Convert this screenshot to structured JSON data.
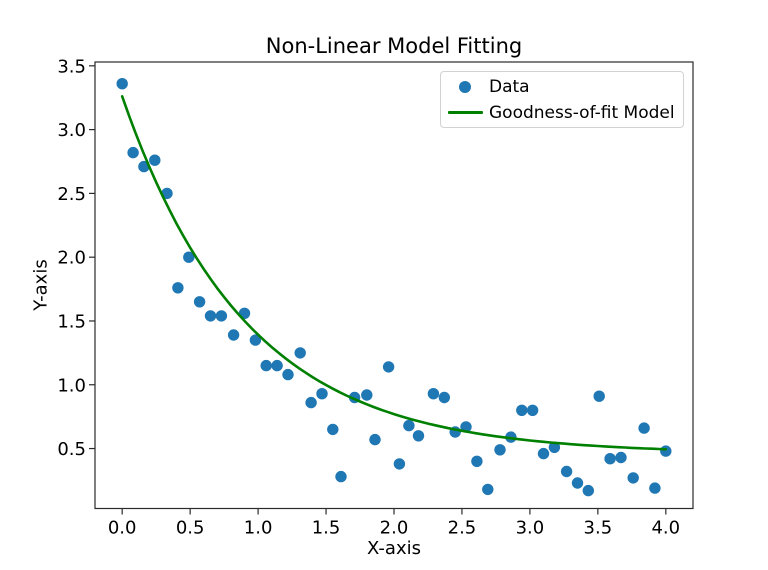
{
  "chart_data": {
    "type": "scatter",
    "title": "Non-Linear Model Fitting",
    "xlabel": "X-axis",
    "ylabel": "Y-axis",
    "grid": false,
    "legend_position": "upper right",
    "xlim": [
      -0.2,
      4.2
    ],
    "ylim": [
      0.03,
      3.53
    ],
    "x_ticks": {
      "values": [
        0.0,
        0.5,
        1.0,
        1.5,
        2.0,
        2.5,
        3.0,
        3.5,
        4.0
      ],
      "labels": [
        "0.0",
        "0.5",
        "1.0",
        "1.5",
        "2.0",
        "2.5",
        "3.0",
        "3.5",
        "4.0"
      ]
    },
    "y_ticks": {
      "values": [
        0.5,
        1.0,
        1.5,
        2.0,
        2.5,
        3.0,
        3.5
      ],
      "labels": [
        "0.5",
        "1.0",
        "1.5",
        "2.0",
        "2.5",
        "3.0",
        "3.5"
      ]
    },
    "series": [
      {
        "name": "Data",
        "type": "scatter",
        "color": "#1f77b4",
        "marker": "circle",
        "points": [
          [
            0.0,
            3.36
          ],
          [
            0.08,
            2.82
          ],
          [
            0.16,
            2.71
          ],
          [
            0.24,
            2.76
          ],
          [
            0.33,
            2.5
          ],
          [
            0.41,
            1.76
          ],
          [
            0.49,
            2.0
          ],
          [
            0.57,
            1.65
          ],
          [
            0.65,
            1.54
          ],
          [
            0.73,
            1.54
          ],
          [
            0.82,
            1.39
          ],
          [
            0.9,
            1.56
          ],
          [
            0.98,
            1.35
          ],
          [
            1.06,
            1.15
          ],
          [
            1.14,
            1.15
          ],
          [
            1.22,
            1.08
          ],
          [
            1.31,
            1.25
          ],
          [
            1.39,
            0.86
          ],
          [
            1.47,
            0.93
          ],
          [
            1.55,
            0.65
          ],
          [
            1.61,
            0.28
          ],
          [
            1.71,
            0.9
          ],
          [
            1.8,
            0.92
          ],
          [
            1.86,
            0.57
          ],
          [
            1.96,
            1.14
          ],
          [
            2.04,
            0.38
          ],
          [
            2.11,
            0.68
          ],
          [
            2.18,
            0.6
          ],
          [
            2.29,
            0.93
          ],
          [
            2.37,
            0.9
          ],
          [
            2.45,
            0.63
          ],
          [
            2.53,
            0.67
          ],
          [
            2.61,
            0.4
          ],
          [
            2.69,
            0.18
          ],
          [
            2.78,
            0.49
          ],
          [
            2.86,
            0.59
          ],
          [
            2.94,
            0.8
          ],
          [
            3.02,
            0.8
          ],
          [
            3.1,
            0.46
          ],
          [
            3.18,
            0.51
          ],
          [
            3.27,
            0.32
          ],
          [
            3.35,
            0.23
          ],
          [
            3.43,
            0.17
          ],
          [
            3.51,
            0.91
          ],
          [
            3.59,
            0.42
          ],
          [
            3.67,
            0.43
          ],
          [
            3.76,
            0.27
          ],
          [
            3.84,
            0.66
          ],
          [
            3.92,
            0.19
          ],
          [
            4.0,
            0.48
          ]
        ]
      },
      {
        "name": "Goodness-of-fit Model",
        "type": "line",
        "color": "#008000",
        "model": "a*exp(-b*x)+c",
        "params": {
          "a": 2.8,
          "b": 1.1,
          "c": 0.46
        },
        "x_range": [
          0,
          4
        ]
      }
    ]
  }
}
